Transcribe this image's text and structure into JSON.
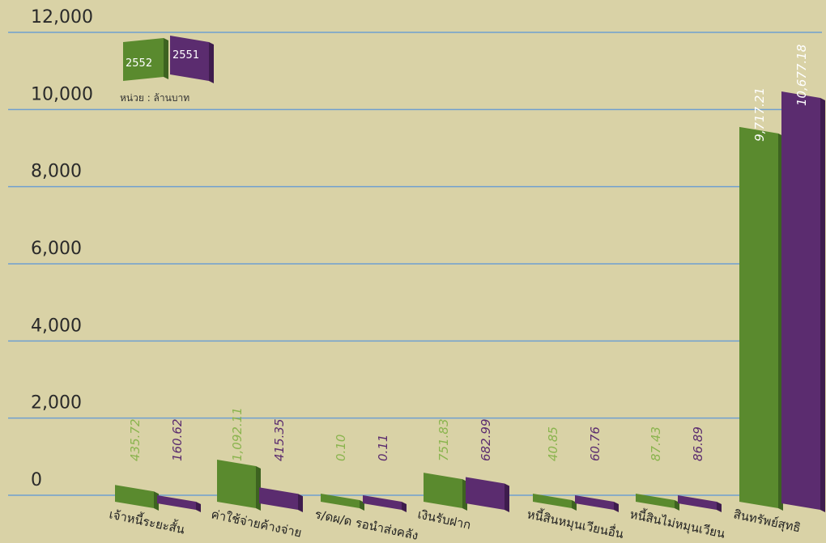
{
  "colors": {
    "background": "#d9d2a6",
    "gridline": "#6f9fcf",
    "series_2552": "#5a8a2e",
    "series_2551": "#5b2c6f"
  },
  "legend": {
    "unit": "หน่วย : ล้านบาท"
  },
  "chart_data": {
    "type": "bar",
    "title": "",
    "xlabel": "",
    "ylabel": "",
    "ylim": [
      0,
      12000
    ],
    "yticks": [
      "0",
      "2,000",
      "4,000",
      "6,000",
      "8,000",
      "10,000",
      "12,000"
    ],
    "ytick_values": [
      0,
      2000,
      4000,
      6000,
      8000,
      10000,
      12000
    ],
    "grid": true,
    "legend_position": "top-left",
    "categories": [
      "เจ้าหนี้ระยะสั้น",
      "ค่าใช้จ่ายค้างจ่าย",
      "ร/ดผ/ด รอนำส่งคลัง",
      "เงินรับฝาก",
      "หนี้สินหมุนเวียนอื่น",
      "หนี้สินไม่หมุนเวียน",
      "สินทรัพย์สุทธิ"
    ],
    "series": [
      {
        "name": "2552",
        "values": [
          435.72,
          1092.11,
          0.1,
          751.83,
          40.85,
          87.43,
          9717.21
        ],
        "labels": [
          "435.72",
          "1,092.11",
          "0.10",
          "751.83",
          "40.85",
          "87.43",
          "9,717.21"
        ]
      },
      {
        "name": "2551",
        "values": [
          160.62,
          415.35,
          0.11,
          682.99,
          60.76,
          86.89,
          10677.18
        ],
        "labels": [
          "160.62",
          "415.35",
          "0.11",
          "682.99",
          "60.76",
          "86.89",
          "10,677.18"
        ]
      }
    ]
  }
}
